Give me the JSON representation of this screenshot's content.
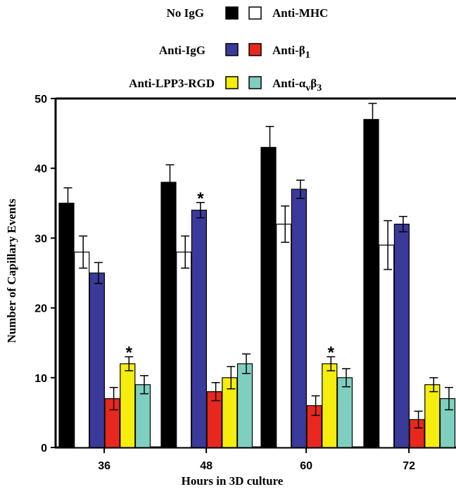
{
  "chart_data": {
    "type": "bar",
    "xlabel": "Hours in 3D culture",
    "ylabel": "Number of Capillary Events",
    "ylim": [
      0,
      50
    ],
    "y_ticks": [
      "0",
      "10",
      "20",
      "30",
      "40",
      "50"
    ],
    "categories": [
      "36",
      "48",
      "60",
      "72"
    ],
    "legend_position": "top",
    "series": [
      {
        "name": "No IgG",
        "color": "#000000",
        "values": [
          35,
          38,
          43,
          47
        ],
        "errors": [
          2.2,
          2.5,
          3.0,
          2.3
        ]
      },
      {
        "name": "Anti-MHC",
        "color": "#ffffff",
        "values": [
          28,
          28,
          32,
          29
        ],
        "errors": [
          2.3,
          2.3,
          2.6,
          3.5
        ]
      },
      {
        "name": "Anti-IgG",
        "color": "#3a3a9a",
        "values": [
          25,
          34,
          37,
          32
        ],
        "errors": [
          1.5,
          1.1,
          1.3,
          1.1
        ]
      },
      {
        "name": "Anti-β1",
        "name_base": "Anti-β",
        "name_sub": "1",
        "color": "#e8281e",
        "values": [
          7,
          8,
          6,
          4
        ],
        "errors": [
          1.6,
          1.3,
          1.4,
          1.2
        ]
      },
      {
        "name": "Anti-LPP3-RGD",
        "color": "#f5ed0e",
        "values": [
          12,
          10,
          12,
          9
        ],
        "errors": [
          1.0,
          1.6,
          1.0,
          1.0
        ]
      },
      {
        "name": "Anti-αvβ3",
        "name_base": "Anti-α",
        "name_sub": "v",
        "name_mid": "β",
        "name_sub2": "3",
        "color": "#7fcfc0",
        "values": [
          9,
          12,
          10,
          7
        ],
        "errors": [
          1.3,
          1.4,
          1.3,
          1.6
        ]
      }
    ],
    "annotations": [
      {
        "text": "*",
        "category_index": 0,
        "series_index": 4
      },
      {
        "text": "*",
        "category_index": 1,
        "series_index": 2
      },
      {
        "text": "*",
        "category_index": 2,
        "series_index": 4
      }
    ]
  }
}
